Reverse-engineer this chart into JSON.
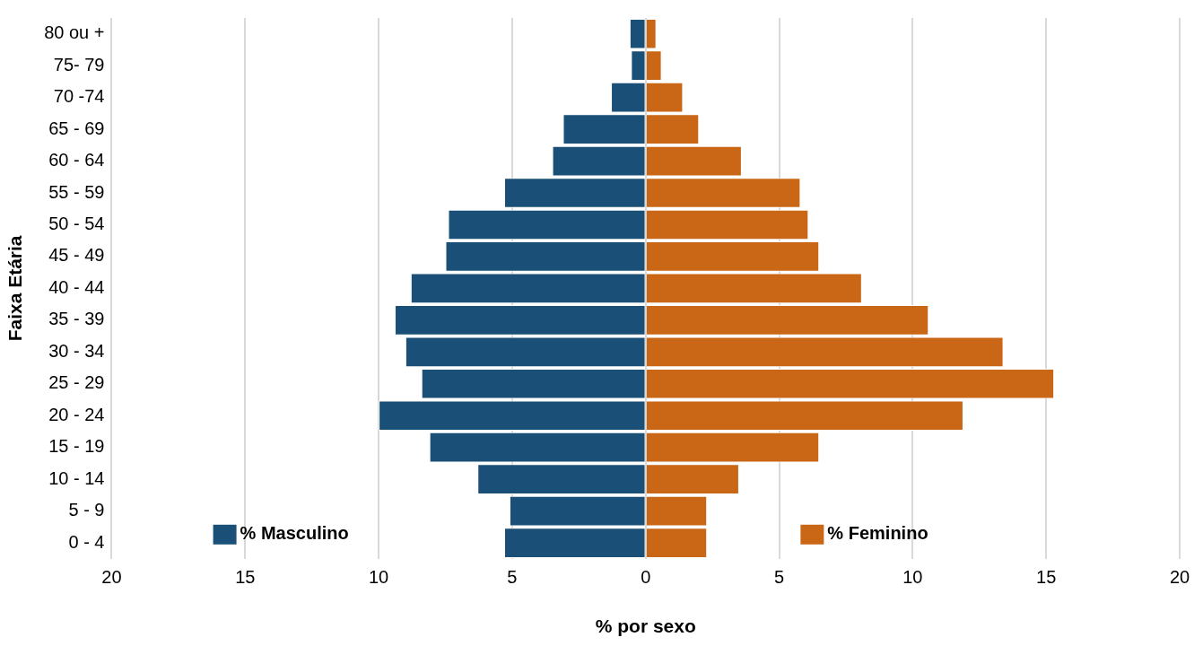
{
  "chart_data": {
    "type": "bar",
    "orientation": "horizontal",
    "stacked": true,
    "xlabel": "% por sexo",
    "ylabel": "Faixa Etária",
    "categories": [
      "80 ou +",
      "75- 79",
      "70 -74",
      "65 - 69",
      "60 - 64",
      "55 - 59",
      "50 - 54",
      "45 - 49",
      "40 - 44",
      "35 - 39",
      "30 - 34",
      "25 - 29",
      "20 - 24",
      "15 - 19",
      "10 - 14",
      "5 - 9",
      "0 - 4"
    ],
    "series": [
      {
        "name": "% Masculino",
        "color": "#1a5077",
        "values": [
          -0.6,
          -0.55,
          -1.3,
          -3.1,
          -3.5,
          -5.3,
          -7.4,
          -7.5,
          -8.8,
          -9.4,
          -9.0,
          -8.4,
          -10.0,
          -8.1,
          -6.3,
          -5.1,
          -5.3
        ]
      },
      {
        "name": "% Feminino",
        "color": "#c96716",
        "values": [
          0.4,
          0.6,
          1.4,
          2.0,
          3.6,
          5.8,
          6.1,
          6.5,
          8.1,
          10.6,
          13.4,
          15.3,
          11.9,
          6.5,
          3.5,
          2.3,
          2.3
        ]
      }
    ],
    "xlim": [
      -20,
      20
    ],
    "xticks": [
      {
        "value": -20,
        "label": "20"
      },
      {
        "value": -15,
        "label": "15"
      },
      {
        "value": -10,
        "label": "10"
      },
      {
        "value": -5,
        "label": "5"
      },
      0,
      5,
      10,
      15,
      20
    ],
    "grid": "x",
    "legend": "bottom"
  }
}
